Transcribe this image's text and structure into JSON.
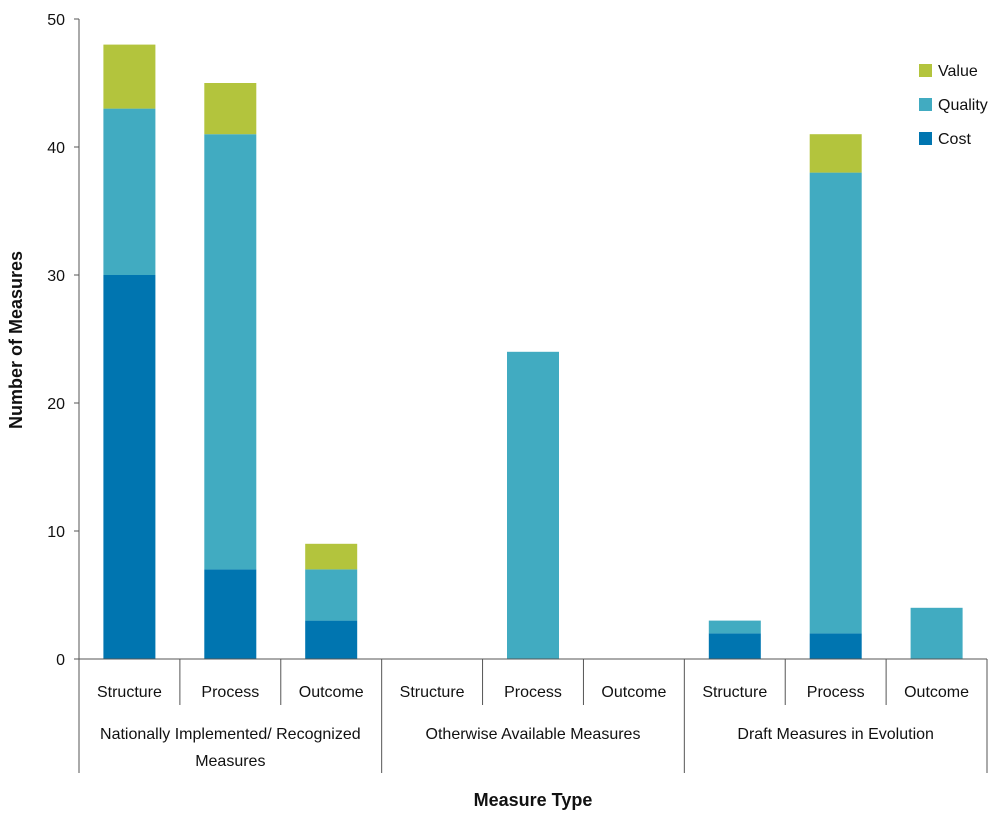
{
  "chart_data": {
    "type": "bar",
    "stacked": true,
    "title": "",
    "xlabel": "Measure Type",
    "ylabel": "Number of Measures",
    "ylim": [
      0,
      50
    ],
    "yticks": [
      0,
      10,
      20,
      30,
      40,
      50
    ],
    "grid": false,
    "legend_position": "top-right",
    "groups": [
      {
        "label_lines": [
          "Nationally Implemented/ Recognized",
          "Measures"
        ]
      },
      {
        "label_lines": [
          "Otherwise Available Measures"
        ]
      },
      {
        "label_lines": [
          "Draft Measures in Evolution"
        ]
      }
    ],
    "categories": [
      "Structure",
      "Process",
      "Outcome",
      "Structure",
      "Process",
      "Outcome",
      "Structure",
      "Process",
      "Outcome"
    ],
    "series": [
      {
        "name": "Cost",
        "color": "#0075B0",
        "values": [
          30,
          7,
          3,
          0,
          0,
          0,
          2,
          2,
          0
        ]
      },
      {
        "name": "Quality",
        "color": "#41ABC1",
        "values": [
          13,
          34,
          4,
          0,
          24,
          0,
          1,
          36,
          4
        ]
      },
      {
        "name": "Value",
        "color": "#B3C43D",
        "values": [
          5,
          4,
          2,
          0,
          0,
          0,
          0,
          3,
          0
        ]
      }
    ],
    "legend_order": [
      "Value",
      "Quality",
      "Cost"
    ]
  }
}
